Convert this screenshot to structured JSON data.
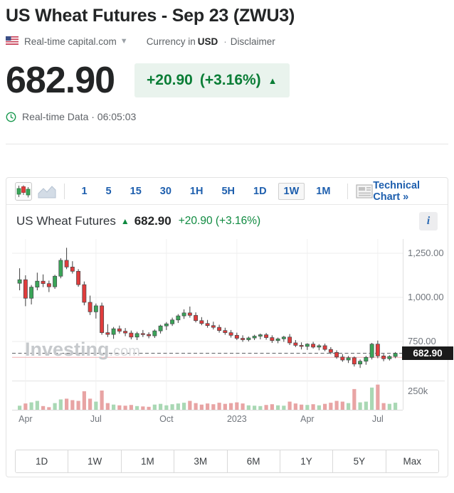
{
  "header": {
    "title": "US Wheat Futures - Sep 23 (ZWU3)",
    "source_label": "Real-time capital.com",
    "currency_prefix": "Currency in",
    "currency": "USD",
    "disclaimer": "Disclaimer",
    "price": "682.90",
    "change": "+20.90",
    "change_pct": "(+3.16%)",
    "realtime_label": "Real-time Data · 06:05:03"
  },
  "toolbar": {
    "intervals": [
      "1",
      "5",
      "15",
      "30",
      "1H",
      "5H",
      "1D",
      "1W",
      "1M"
    ],
    "selected_interval": "1W",
    "technical_chart_label": "Technical Chart »"
  },
  "chart_header": {
    "name": "US Wheat Futures",
    "price": "682.90",
    "change": "+20.90",
    "change_pct": "(+3.16%)",
    "info_label": "i"
  },
  "watermark": {
    "bold": "Investing",
    "light": ".com"
  },
  "chart_data": {
    "type": "candlestick+volume",
    "title": "US Wheat Futures, weekly (1W)",
    "y_axis_labels": [
      "1,250.00",
      "1,000.00",
      "750.00"
    ],
    "y_axis_values": [
      1250,
      1000,
      750
    ],
    "current_price": 682.9,
    "current_price_label": "682.90",
    "reference_line_price": 660,
    "volume_axis_label": "250k",
    "volume_axis_value": 250,
    "x_ticks": [
      {
        "index": 1,
        "label": "Apr"
      },
      {
        "index": 13,
        "label": "Jul"
      },
      {
        "index": 25,
        "label": "Oct"
      },
      {
        "index": 37,
        "label": "2023"
      },
      {
        "index": 49,
        "label": "Apr"
      },
      {
        "index": 61,
        "label": "Jul"
      }
    ],
    "candles_ohlc": [
      [
        1080,
        1165,
        1040,
        1100
      ],
      [
        1100,
        1125,
        950,
        995
      ],
      [
        995,
        1070,
        960,
        1058
      ],
      [
        1058,
        1140,
        1040,
        1092
      ],
      [
        1092,
        1130,
        1058,
        1078
      ],
      [
        1078,
        1095,
        1030,
        1060
      ],
      [
        1060,
        1128,
        1048,
        1120
      ],
      [
        1120,
        1222,
        1108,
        1210
      ],
      [
        1210,
        1281,
        1160,
        1172
      ],
      [
        1172,
        1205,
        1135,
        1148
      ],
      [
        1148,
        1160,
        1060,
        1072
      ],
      [
        1072,
        1090,
        955,
        972
      ],
      [
        972,
        1010,
        900,
        918
      ],
      [
        918,
        965,
        880,
        952
      ],
      [
        952,
        970,
        788,
        800
      ],
      [
        800,
        848,
        775,
        790
      ],
      [
        790,
        832,
        765,
        822
      ],
      [
        822,
        840,
        795,
        808
      ],
      [
        808,
        826,
        780,
        798
      ],
      [
        798,
        812,
        762,
        775
      ],
      [
        775,
        805,
        758,
        795
      ],
      [
        795,
        815,
        775,
        790
      ],
      [
        790,
        802,
        768,
        782
      ],
      [
        782,
        818,
        770,
        810
      ],
      [
        810,
        845,
        795,
        838
      ],
      [
        838,
        860,
        815,
        850
      ],
      [
        850,
        885,
        838,
        872
      ],
      [
        872,
        905,
        855,
        895
      ],
      [
        895,
        932,
        878,
        912
      ],
      [
        912,
        948,
        885,
        898
      ],
      [
        898,
        915,
        858,
        868
      ],
      [
        868,
        888,
        842,
        852
      ],
      [
        852,
        872,
        828,
        840
      ],
      [
        840,
        862,
        818,
        830
      ],
      [
        830,
        845,
        800,
        812
      ],
      [
        812,
        828,
        788,
        800
      ],
      [
        800,
        815,
        772,
        785
      ],
      [
        785,
        800,
        758,
        768
      ],
      [
        768,
        785,
        748,
        760
      ],
      [
        760,
        778,
        750,
        770
      ],
      [
        770,
        788,
        758,
        780
      ],
      [
        780,
        795,
        762,
        788
      ],
      [
        788,
        798,
        760,
        772
      ],
      [
        772,
        785,
        742,
        755
      ],
      [
        755,
        772,
        740,
        765
      ],
      [
        765,
        782,
        748,
        775
      ],
      [
        775,
        792,
        730,
        742
      ],
      [
        742,
        758,
        718,
        728
      ],
      [
        728,
        745,
        705,
        722
      ],
      [
        722,
        740,
        702,
        735
      ],
      [
        735,
        748,
        710,
        718
      ],
      [
        718,
        735,
        700,
        726
      ],
      [
        726,
        738,
        695,
        705
      ],
      [
        705,
        718,
        678,
        688
      ],
      [
        688,
        700,
        652,
        662
      ],
      [
        662,
        678,
        635,
        645
      ],
      [
        645,
        668,
        628,
        658
      ],
      [
        658,
        665,
        608,
        622
      ],
      [
        622,
        648,
        600,
        638
      ],
      [
        638,
        668,
        618,
        660
      ],
      [
        660,
        742,
        648,
        735
      ],
      [
        735,
        755,
        655,
        668
      ],
      [
        668,
        680,
        638,
        652
      ],
      [
        652,
        672,
        642,
        665
      ],
      [
        665,
        690,
        655,
        683
      ]
    ],
    "volumes_k": [
      55,
      85,
      100,
      120,
      50,
      35,
      90,
      140,
      150,
      130,
      120,
      250,
      150,
      110,
      260,
      90,
      70,
      60,
      55,
      65,
      50,
      45,
      40,
      70,
      80,
      60,
      75,
      85,
      95,
      120,
      90,
      70,
      85,
      75,
      95,
      80,
      90,
      100,
      85,
      60,
      55,
      50,
      65,
      75,
      60,
      55,
      110,
      85,
      70,
      65,
      75,
      60,
      80,
      95,
      120,
      110,
      90,
      280,
      100,
      110,
      300,
      340,
      90,
      80,
      95
    ]
  },
  "range_buttons": [
    "1D",
    "1W",
    "1M",
    "3M",
    "6M",
    "1Y",
    "5Y",
    "Max"
  ],
  "colors": {
    "up": "#3aa558",
    "down": "#e03c3c",
    "up_vol": "#a9d8b4",
    "down_vol": "#e8a4a4",
    "wick": "#3d3d3d",
    "grid": "#ededed",
    "vgrid": "#f1f1f1",
    "dash_line": "#55585c",
    "ref_line": "#f2b9bd",
    "accent_blue": "#1e5fae",
    "green_text": "#0a7d36"
  }
}
